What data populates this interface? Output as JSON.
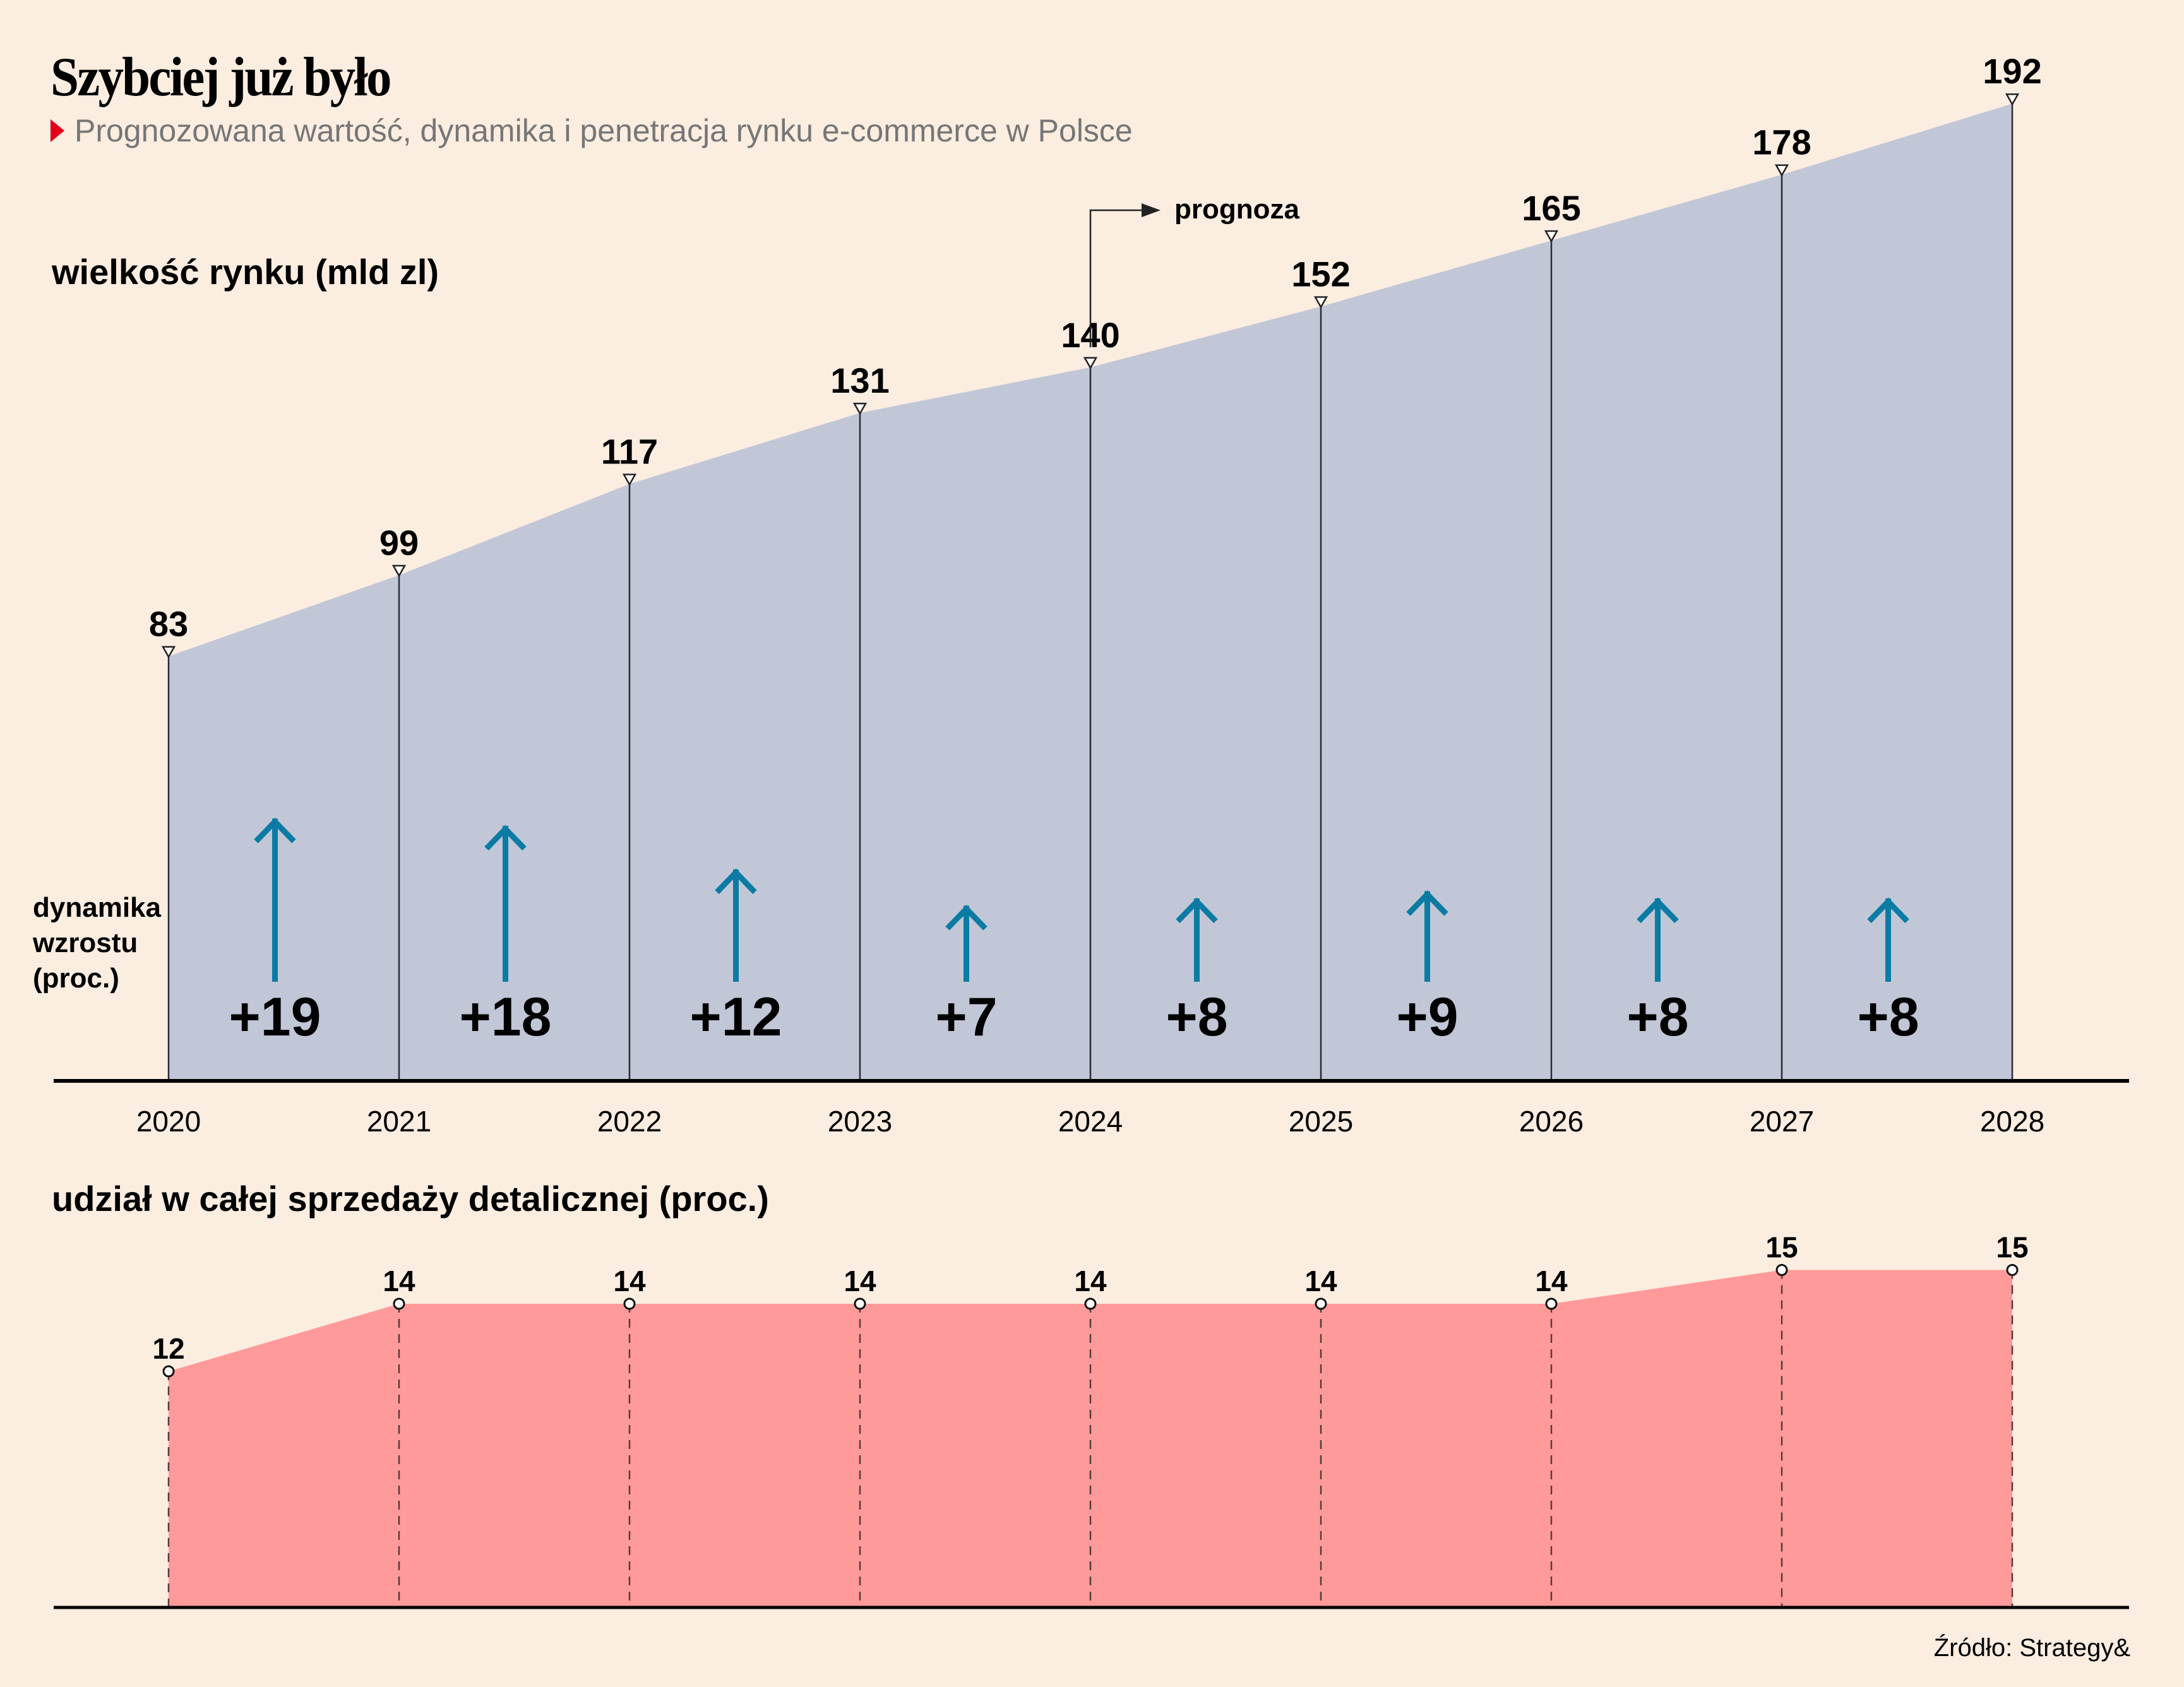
{
  "header": {
    "title": "Szybciej już było",
    "subtitle": "Prognozowana wartość, dynamika i penetracja rynku e-commerce w Polsce"
  },
  "labels": {
    "market_size": "wielkość rynku (mld zl)",
    "growth_line1": "dynamika",
    "growth_line2": "wzrostu",
    "growth_line3": "(proc.)",
    "share": "udział w całej sprzedaży detalicznej (proc.)",
    "forecast": "prognoza",
    "source": "Źródło: Strategy&"
  },
  "colors": {
    "background": "#fbede0",
    "market_area": "#c1c7d7",
    "share_area": "#ff9a9a",
    "growth_arrow": "#0b7ba3",
    "accent_marker": "#e3001b"
  },
  "chart_data": [
    {
      "type": "area",
      "title": "wielkość rynku (mld zl)",
      "categories": [
        "2020",
        "2021",
        "2022",
        "2023",
        "2024",
        "2025",
        "2026",
        "2027",
        "2028"
      ],
      "values": [
        83,
        99,
        117,
        131,
        140,
        152,
        165,
        178,
        192
      ],
      "value_labels": [
        "83",
        "99",
        "117",
        "131",
        "140",
        "152",
        "165",
        "178",
        "192"
      ],
      "ylim": [
        0,
        192
      ],
      "annotation": {
        "text": "prognoza",
        "from_category": "2024"
      },
      "grid": false
    },
    {
      "type": "bar",
      "title": "dynamika wzrostu (proc.)",
      "categories": [
        "2020-2021",
        "2021-2022",
        "2022-2023",
        "2023-2024",
        "2024-2025",
        "2025-2026",
        "2026-2027",
        "2027-2028"
      ],
      "values": [
        19,
        18,
        12,
        7,
        8,
        9,
        8,
        8
      ],
      "value_labels": [
        "+19",
        "+18",
        "+12",
        "+7",
        "+8",
        "+9",
        "+8",
        "+8"
      ],
      "marker": "up-arrow"
    },
    {
      "type": "area",
      "title": "udział w całej sprzedaży detalicznej (proc.)",
      "categories": [
        "2020",
        "2021",
        "2022",
        "2023",
        "2024",
        "2025",
        "2026",
        "2027",
        "2028"
      ],
      "values": [
        12,
        14,
        14,
        14,
        14,
        14,
        14,
        15,
        15
      ],
      "value_labels": [
        "12",
        "14",
        "14",
        "14",
        "14",
        "14",
        "14",
        "15",
        "15"
      ],
      "grid": false
    }
  ]
}
